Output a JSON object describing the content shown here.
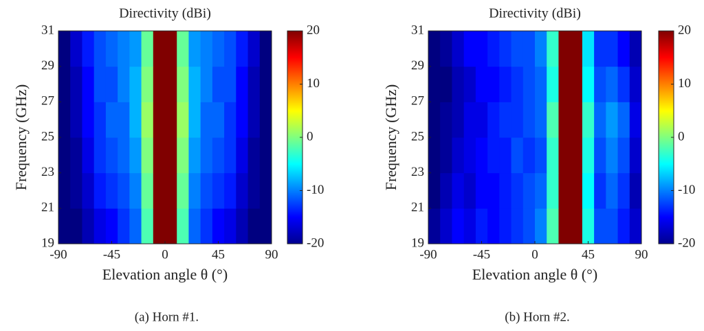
{
  "chart_data": [
    {
      "type": "heatmap",
      "title": "Directivity (dBi)",
      "x_label": "Elevation angle θ (°)",
      "y_label": "Frequency (GHz)",
      "caption": "(a) Horn #1.",
      "x": [
        -85,
        -75,
        -65,
        -55,
        -45,
        -35,
        -25,
        -15,
        -5,
        5,
        15,
        25,
        35,
        45,
        55,
        65,
        75,
        85
      ],
      "y": [
        20,
        22,
        24,
        26,
        28,
        30
      ],
      "values": [
        [
          -20,
          -20,
          -18,
          -16,
          -15,
          -13,
          -11,
          -2,
          20,
          20,
          -2,
          -11,
          -13,
          -15,
          -16,
          -18,
          -20,
          -20
        ],
        [
          -20,
          -19,
          -17,
          -14,
          -13,
          -12,
          -10,
          -1,
          20,
          20,
          -1,
          -10,
          -12,
          -13,
          -14,
          -17,
          -19,
          -20
        ],
        [
          -20,
          -19,
          -16,
          -13,
          -12,
          -11,
          -9,
          0,
          20,
          20,
          0,
          -9,
          -11,
          -12,
          -13,
          -16,
          -19,
          -20
        ],
        [
          -20,
          -18,
          -15,
          -13,
          -11,
          -11,
          -8,
          1,
          20,
          20,
          1,
          -8,
          -11,
          -11,
          -13,
          -15,
          -18,
          -20
        ],
        [
          -20,
          -18,
          -15,
          -12,
          -12,
          -10,
          -8,
          0,
          20,
          20,
          0,
          -8,
          -10,
          -12,
          -12,
          -15,
          -18,
          -20
        ],
        [
          -20,
          -17,
          -14,
          -12,
          -11,
          -10,
          -9,
          -1,
          20,
          20,
          -1,
          -9,
          -10,
          -11,
          -12,
          -14,
          -17,
          -20
        ]
      ],
      "xlim": [
        -90,
        90
      ],
      "ylim": [
        19,
        31
      ],
      "xticks": [
        -90,
        -45,
        0,
        45,
        90
      ],
      "yticks": [
        19,
        21,
        23,
        25,
        27,
        29,
        31
      ],
      "clim": [
        -20,
        20
      ],
      "cticks": [
        -20,
        -10,
        0,
        10,
        20
      ],
      "colormap": "jet"
    },
    {
      "type": "heatmap",
      "title": "Directivity (dBi)",
      "x_label": "Elevation angle θ (°)",
      "y_label": "Frequency (GHz)",
      "caption": "(b) Horn #2.",
      "x": [
        -85,
        -75,
        -65,
        -55,
        -45,
        -35,
        -25,
        -15,
        -5,
        5,
        15,
        25,
        35,
        45,
        55,
        65,
        75,
        85
      ],
      "y": [
        20,
        22,
        24,
        26,
        28,
        30
      ],
      "values": [
        [
          -19,
          -17,
          -15,
          -16,
          -14,
          -15,
          -14,
          -13,
          -12,
          -10,
          -2,
          20,
          20,
          -4,
          -12,
          -12,
          -14,
          -17
        ],
        [
          -20,
          -18,
          -16,
          -17,
          -15,
          -15,
          -14,
          -13,
          -12,
          -11,
          -3,
          20,
          20,
          -5,
          -13,
          -11,
          -13,
          -18
        ],
        [
          -20,
          -19,
          -17,
          -16,
          -15,
          -14,
          -14,
          -12,
          -13,
          -12,
          -3,
          20,
          20,
          -4,
          -12,
          -10,
          -12,
          -17
        ],
        [
          -20,
          -19,
          -18,
          -16,
          -16,
          -14,
          -13,
          -13,
          -12,
          -11,
          -2,
          20,
          20,
          -3,
          -11,
          -9,
          -11,
          -16
        ],
        [
          -20,
          -20,
          -18,
          -17,
          -15,
          -15,
          -14,
          -13,
          -12,
          -11,
          -4,
          20,
          20,
          -5,
          -12,
          -11,
          -13,
          -17
        ],
        [
          -20,
          -19,
          -17,
          -15,
          -15,
          -14,
          -13,
          -12,
          -12,
          -10,
          -3,
          20,
          20,
          -6,
          -13,
          -13,
          -15,
          -18
        ]
      ],
      "xlim": [
        -90,
        90
      ],
      "ylim": [
        19,
        31
      ],
      "xticks": [
        -90,
        -45,
        0,
        45,
        90
      ],
      "yticks": [
        19,
        21,
        23,
        25,
        27,
        29,
        31
      ],
      "clim": [
        -20,
        20
      ],
      "cticks": [
        -20,
        -10,
        0,
        10,
        20
      ],
      "colormap": "jet"
    }
  ]
}
